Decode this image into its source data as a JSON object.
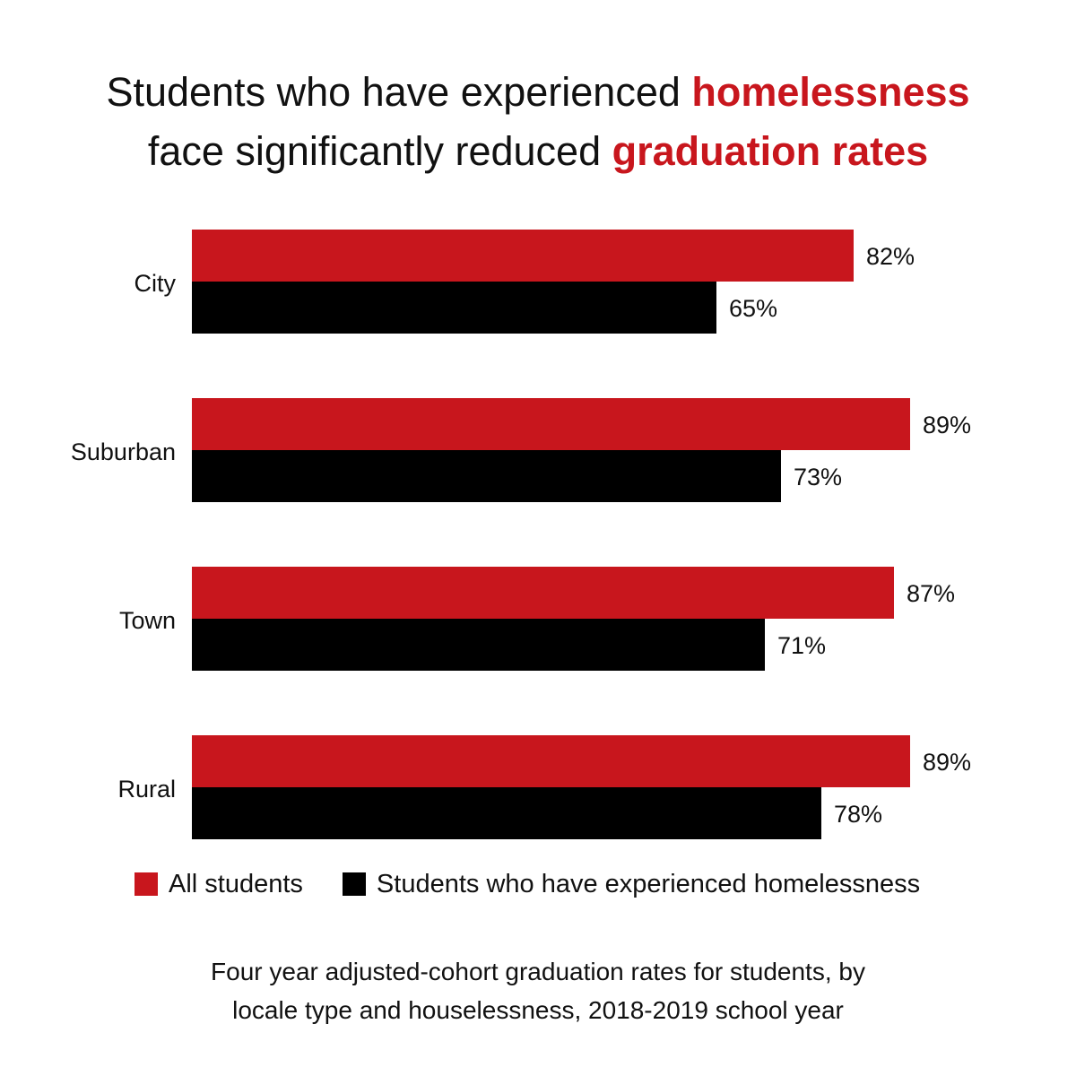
{
  "title": {
    "line1_prefix": "Students who have experienced ",
    "line1_highlight": "homelessness",
    "line2_prefix": "face significantly reduced ",
    "line2_highlight": "graduation rates"
  },
  "colors": {
    "accent": "#c8161d",
    "dark": "#000000",
    "text": "#111111"
  },
  "chart_data": {
    "type": "bar",
    "orientation": "horizontal",
    "categories": [
      "City",
      "Suburban",
      "Town",
      "Rural"
    ],
    "series": [
      {
        "name": "All students",
        "values": [
          82,
          89,
          87,
          89
        ],
        "labels": [
          "82%",
          "89%",
          "87%",
          "89%"
        ],
        "color": "#c8161d"
      },
      {
        "name": "Students who have experienced homelessness",
        "values": [
          65,
          73,
          71,
          78
        ],
        "labels": [
          "65%",
          "73%",
          "71%",
          "78%"
        ],
        "color": "#000000"
      }
    ],
    "xlim": [
      0,
      100
    ],
    "grid": false,
    "legend_position": "bottom"
  },
  "legend": {
    "all_students": "All students",
    "homeless": "Students who have experienced homelessness"
  },
  "caption": {
    "line1": "Four year adjusted-cohort graduation rates for students, by",
    "line2": "locale type and houselessness, 2018-2019 school year"
  }
}
